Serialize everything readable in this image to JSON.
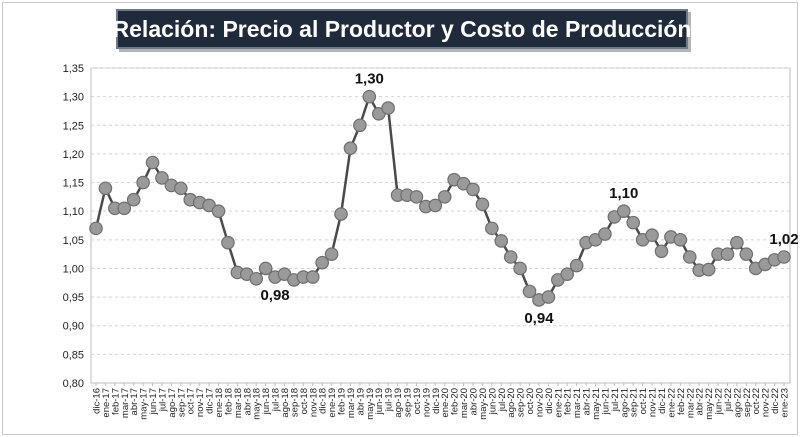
{
  "chart_data": {
    "type": "line",
    "title": "Relación: Precio al Productor y Costo de Producción",
    "ylim": [
      0.8,
      1.35
    ],
    "yticks": [
      "0,80",
      "0,85",
      "0,90",
      "0,95",
      "1,00",
      "1,05",
      "1,10",
      "1,15",
      "1,20",
      "1,25",
      "1,30",
      "1,35"
    ],
    "grid": true,
    "colors": {
      "line": "#4a4a4a",
      "marker": "#9a9a9a",
      "grid": "#d4d4d4",
      "axis": "#bdbdbd"
    },
    "x": [
      "dic-16",
      "ene-17",
      "feb-17",
      "mar-17",
      "abr-17",
      "may-17",
      "jun-17",
      "jul-17",
      "ago-17",
      "sep-17",
      "oct-17",
      "nov-17",
      "dic-17",
      "ene-18",
      "feb-18",
      "mar-18",
      "abr-18",
      "may-18",
      "jun-18",
      "jul-18",
      "ago-18",
      "sep-18",
      "oct-18",
      "nov-18",
      "dic-18",
      "ene-19",
      "feb-19",
      "mar-19",
      "abr-19",
      "may-19",
      "jun-19",
      "jul-19",
      "ago-19",
      "sep-19",
      "oct-19",
      "nov-19",
      "dic-19",
      "ene-20",
      "feb-20",
      "mar-20",
      "abr-20",
      "may-20",
      "jun-20",
      "jul-20",
      "ago-20",
      "sep-20",
      "oct-20",
      "nov-20",
      "dic-20",
      "ene-21",
      "feb-21",
      "mar-21",
      "abr-21",
      "may-21",
      "jun-21",
      "jul-21",
      "ago-21",
      "sep-21",
      "oct-21",
      "nov-21",
      "dic-21",
      "ene-22",
      "feb-22",
      "mar-22",
      "abr-22",
      "may-22",
      "jun-22",
      "jul-22",
      "ago-22",
      "sep-22",
      "oct-22",
      "nov-22",
      "dic-22",
      "ene-23"
    ],
    "series": [
      {
        "values": [
          1.07,
          1.14,
          1.105,
          1.105,
          1.12,
          1.15,
          1.185,
          1.158,
          1.145,
          1.14,
          1.12,
          1.115,
          1.11,
          1.1,
          1.045,
          0.993,
          0.99,
          0.982,
          1.0,
          0.985,
          0.99,
          0.98,
          0.985,
          0.985,
          1.01,
          1.025,
          1.095,
          1.21,
          1.25,
          1.3,
          1.27,
          1.28,
          1.128,
          1.128,
          1.125,
          1.108,
          1.11,
          1.125,
          1.155,
          1.148,
          1.138,
          1.112,
          1.07,
          1.048,
          1.02,
          1.0,
          0.96,
          0.945,
          0.95,
          0.98,
          0.99,
          1.005,
          1.045,
          1.05,
          1.06,
          1.09,
          1.1,
          1.08,
          1.05,
          1.058,
          1.03,
          1.055,
          1.05,
          1.02,
          0.997,
          0.998,
          1.025,
          1.025,
          1.045,
          1.025,
          1.0,
          1.007,
          1.015,
          1.02
        ]
      }
    ],
    "annotations": [
      {
        "index": 19,
        "label": "0,98",
        "position": "below"
      },
      {
        "index": 29,
        "label": "1,30",
        "position": "above"
      },
      {
        "index": 47,
        "label": "0,94",
        "position": "below"
      },
      {
        "index": 56,
        "label": "1,10",
        "position": "above"
      },
      {
        "index": 73,
        "label": "1,02",
        "position": "above"
      }
    ]
  }
}
